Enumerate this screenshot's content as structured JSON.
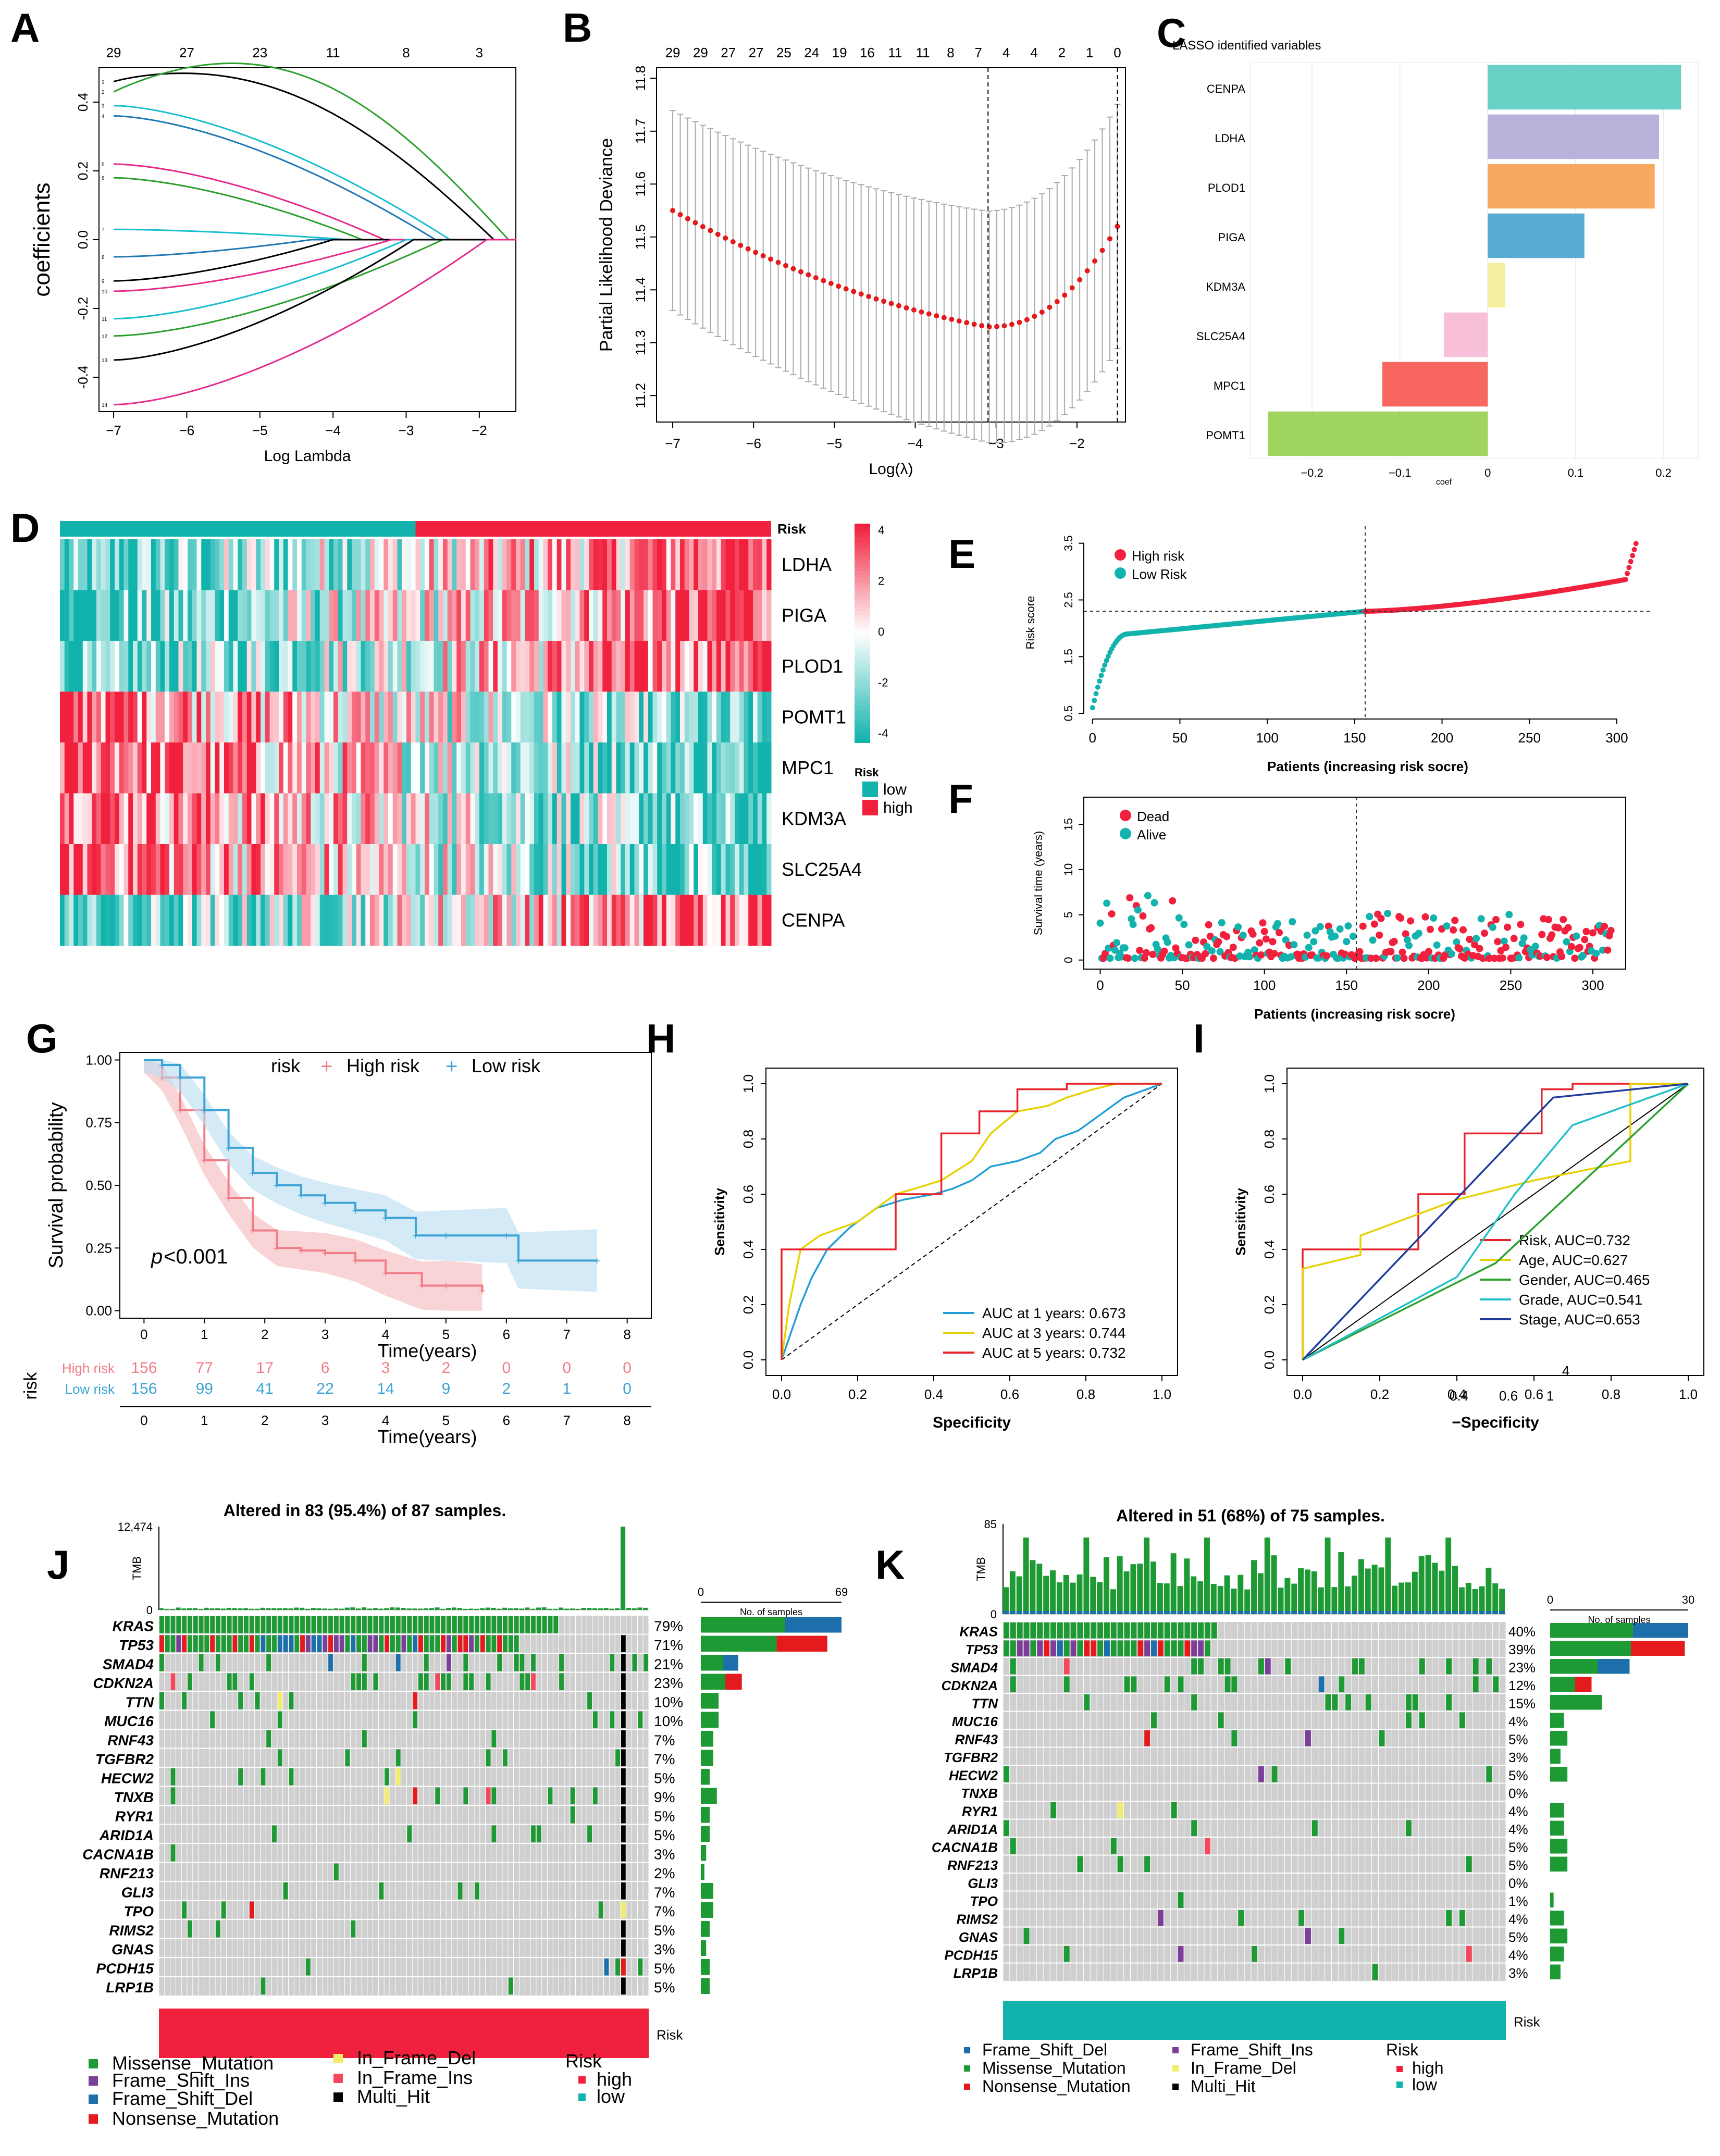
{
  "panel_letters": [
    "A",
    "B",
    "C",
    "D",
    "E",
    "F",
    "G",
    "H",
    "I",
    "J",
    "K"
  ],
  "chart_data": [
    {
      "panel": "A",
      "type": "line",
      "xlabel": "Log Lambda",
      "ylabel": "coefficients",
      "x_ticks": [
        -7,
        -6,
        -5,
        -4,
        -3,
        -2
      ],
      "y_ticks": [
        -0.4,
        -0.2,
        0.0,
        0.2,
        0.4
      ],
      "top_ticks": [
        "29",
        "27",
        "23",
        "11",
        "8",
        "3"
      ],
      "top_tick_x": [
        -7,
        -6,
        -5,
        -4,
        -3,
        -2
      ],
      "xlim": [
        -7.2,
        -1.5
      ],
      "ylim": [
        -0.5,
        0.5
      ],
      "series": [
        {
          "color": "#000000",
          "start": 0.46,
          "zero_at": -1.8,
          "bump": 0.1
        },
        {
          "color": "#2ca02c",
          "start": 0.43,
          "zero_at": -1.6,
          "bump": 0.18
        },
        {
          "color": "#17becf",
          "start": 0.39,
          "zero_at": -2.4,
          "bump": 0.0
        },
        {
          "color": "#1f77b4",
          "start": 0.36,
          "zero_at": -2.6,
          "bump": 0.0
        },
        {
          "color": "#e7298a",
          "start": 0.22,
          "zero_at": -3.3,
          "bump": 0.0
        },
        {
          "color": "#2ca02c",
          "start": 0.18,
          "zero_at": -3.6,
          "bump": 0.0
        },
        {
          "color": "#17becf",
          "start": 0.03,
          "zero_at": -3.8,
          "bump": 0.0
        },
        {
          "color": "#1f77b4",
          "start": -0.05,
          "zero_at": -4.3,
          "bump": 0.0
        },
        {
          "color": "#000000",
          "start": -0.12,
          "zero_at": -4.0,
          "bump": 0.0
        },
        {
          "color": "#e7298a",
          "start": -0.15,
          "zero_at": -3.2,
          "bump": 0.0
        },
        {
          "color": "#17becf",
          "start": -0.23,
          "zero_at": -3.0,
          "bump": 0.0
        },
        {
          "color": "#2ca02c",
          "start": -0.28,
          "zero_at": -2.5,
          "bump": 0.0
        },
        {
          "color": "#000000",
          "start": -0.35,
          "zero_at": -2.9,
          "bump": 0.0
        },
        {
          "color": "#e7298a",
          "start": -0.48,
          "zero_at": -1.9,
          "bump": 0.0
        }
      ]
    },
    {
      "panel": "B",
      "type": "scatter",
      "xlabel": "Log(λ)",
      "ylabel": "Partial Likelihood Deviance",
      "x_ticks": [
        -7,
        -6,
        -5,
        -4,
        -3,
        -2
      ],
      "y_ticks": [
        11.2,
        11.3,
        11.4,
        11.5,
        11.6,
        11.7,
        11.8
      ],
      "top_ticks": [
        "29",
        "29",
        "27",
        "27",
        "25",
        "24",
        "19",
        "16",
        "11",
        "11",
        "8",
        "7",
        "4",
        "4",
        "2",
        "1",
        "0"
      ],
      "xlim": [
        -7.2,
        -1.4
      ],
      "ylim": [
        11.15,
        11.82
      ],
      "vlines": [
        -3.1,
        -1.5
      ],
      "curve": {
        "x0": -7.0,
        "x1": -1.5,
        "ymin": 11.33,
        "xmin": -3.1,
        "y_left": 11.55,
        "y_right": 11.52,
        "err": 0.21
      }
    },
    {
      "panel": "C",
      "type": "bar",
      "title": "LASSO identified variables",
      "xlabel": "coef",
      "categories": [
        "CENPA",
        "LDHA",
        "PLOD1",
        "PIGA",
        "KDM3A",
        "SLC25A4",
        "MPC1",
        "POMT1"
      ],
      "values": [
        0.22,
        0.195,
        0.19,
        0.11,
        0.02,
        -0.05,
        -0.12,
        -0.25
      ],
      "colors": [
        "#6ad1c6",
        "#b9b3dc",
        "#f9a95f",
        "#5aabd4",
        "#f5f0a0",
        "#f8bfd8",
        "#f7675f",
        "#9fd45f"
      ],
      "x_ticks": [
        -0.2,
        -0.1,
        0.0,
        0.1,
        0.2
      ],
      "xlim": [
        -0.27,
        0.24
      ]
    },
    {
      "panel": "D",
      "type": "heatmap",
      "rows": [
        "LDHA",
        "PIGA",
        "PLOD1",
        "POMT1",
        "MPC1",
        "KDM3A",
        "SLC25A4",
        "CENPA"
      ],
      "risk_label": "Risk",
      "scale_ticks": [
        "4",
        "2",
        "0",
        "-2",
        "-4"
      ],
      "legend_title": "Risk",
      "legend_items": [
        "low",
        "high"
      ],
      "low_color": "#13b3ad",
      "high_color": "#f1203c",
      "n_samples": 312,
      "n_low": 156
    },
    {
      "panel": "E",
      "type": "scatter",
      "xlabel": "Patients (increasing risk socre)",
      "ylabel": "Risk score",
      "x_ticks": [
        0,
        50,
        100,
        150,
        200,
        250,
        300
      ],
      "y_ticks": [
        0.5,
        1.5,
        2.5,
        3.5
      ],
      "xlim": [
        -5,
        320
      ],
      "ylim": [
        0.4,
        3.8
      ],
      "legend": [
        "High risk",
        "Low Risk"
      ],
      "cutoff_x": 156,
      "cutoff_y": 2.3,
      "n": 312
    },
    {
      "panel": "F",
      "type": "scatter",
      "xlabel": "Patients (increasing risk socre)",
      "ylabel": "Survival time (years)",
      "x_ticks": [
        0,
        50,
        100,
        150,
        200,
        250,
        300
      ],
      "y_ticks": [
        0,
        5,
        10,
        15
      ],
      "xlim": [
        -10,
        320
      ],
      "ylim": [
        -1,
        18
      ],
      "legend": [
        "Dead",
        "Alive"
      ],
      "cutoff_x": 156,
      "n": 312
    },
    {
      "panel": "G",
      "type": "line",
      "xlabel": "Time(years)",
      "ylabel": "Survival probability",
      "legend_title": "risk",
      "legend": [
        "High risk",
        "Low risk"
      ],
      "pvalue": "<0.001",
      "pvalue_italic": "p",
      "x_ticks": [
        0,
        1,
        2,
        3,
        4,
        5,
        6,
        7,
        8
      ],
      "y_ticks": [
        "0.00",
        "0.25",
        "0.50",
        "0.75",
        "1.00"
      ],
      "xlim": [
        -0.4,
        8.4
      ],
      "ylim": [
        -0.03,
        1.03
      ],
      "series": [
        {
          "name": "High risk",
          "color": "#f07c86",
          "ci": "#f5b7bd",
          "x": [
            0,
            0.3,
            0.6,
            1,
            1.4,
            1.8,
            2.2,
            2.6,
            3,
            3.5,
            4,
            4.6,
            5,
            5.6
          ],
          "y": [
            1,
            0.93,
            0.8,
            0.6,
            0.45,
            0.32,
            0.25,
            0.24,
            0.23,
            0.2,
            0.15,
            0.1,
            0.1,
            0.08
          ]
        },
        {
          "name": "Low risk",
          "color": "#3ca3d6",
          "ci": "#b9dcf1",
          "x": [
            0,
            0.3,
            0.6,
            1,
            1.4,
            1.8,
            2.2,
            2.6,
            3,
            3.5,
            4,
            4.5,
            5,
            6,
            6.2,
            7.5
          ],
          "y": [
            1,
            0.98,
            0.93,
            0.8,
            0.65,
            0.55,
            0.5,
            0.46,
            0.43,
            0.4,
            0.37,
            0.3,
            0.3,
            0.3,
            0.2,
            0.2
          ]
        }
      ],
      "risk_table": {
        "title": "risk",
        "rows": [
          {
            "label": "High risk",
            "values": [
              "156",
              "77",
              "17",
              "6",
              "3",
              "2",
              "0",
              "0",
              "0"
            ]
          },
          {
            "label": "Low risk",
            "values": [
              "156",
              "99",
              "41",
              "22",
              "14",
              "9",
              "2",
              "1",
              "0"
            ]
          }
        ],
        "x_ticks": [
          0,
          1,
          2,
          3,
          4,
          5,
          6,
          7,
          8
        ]
      }
    },
    {
      "panel": "H",
      "type": "line",
      "xlabel": "Specificity",
      "ylabel": "Sensitivity",
      "x_ticks": [
        "0.0",
        "0.2",
        "0.4",
        "0.6",
        "0.8",
        "1.0"
      ],
      "y_ticks": [
        "0.0",
        "0.2",
        "0.4",
        "0.6",
        "0.8",
        "1.0"
      ],
      "series": [
        {
          "name": "AUC at 1 years: 0.673",
          "color": "#1f9fd6",
          "x": [
            0,
            0.02,
            0.05,
            0.08,
            0.12,
            0.18,
            0.25,
            0.32,
            0.4,
            0.45,
            0.5,
            0.55,
            0.62,
            0.68,
            0.72,
            0.78,
            0.85,
            0.9,
            0.96,
            1
          ],
          "y": [
            0,
            0.08,
            0.2,
            0.3,
            0.4,
            0.48,
            0.55,
            0.58,
            0.6,
            0.62,
            0.65,
            0.7,
            0.72,
            0.75,
            0.8,
            0.83,
            0.9,
            0.95,
            0.98,
            1
          ]
        },
        {
          "name": "AUC at 3 years: 0.744",
          "color": "#e8d100",
          "x": [
            0,
            0.02,
            0.05,
            0.1,
            0.2,
            0.25,
            0.3,
            0.35,
            0.42,
            0.5,
            0.55,
            0.62,
            0.7,
            0.75,
            0.82,
            0.88,
            1
          ],
          "y": [
            0,
            0.2,
            0.4,
            0.45,
            0.5,
            0.55,
            0.6,
            0.62,
            0.65,
            0.72,
            0.82,
            0.9,
            0.92,
            0.95,
            0.98,
            1,
            1
          ]
        },
        {
          "name": "AUC at 5 years: 0.732",
          "color": "#e8232b",
          "x": [
            0,
            0,
            0.05,
            0.15,
            0.3,
            0.3,
            0.42,
            0.42,
            0.52,
            0.52,
            0.62,
            0.62,
            0.75,
            0.75,
            1
          ],
          "y": [
            0,
            0.4,
            0.4,
            0.4,
            0.4,
            0.6,
            0.6,
            0.82,
            0.82,
            0.9,
            0.9,
            0.98,
            0.98,
            1,
            1
          ]
        }
      ]
    },
    {
      "panel": "I",
      "type": "line",
      "xlabel": "−Specificity",
      "ylabel": "Sensitivity",
      "x_ticks": [
        "0.0",
        "0.2",
        "0.4",
        "0.6",
        "0.8",
        "1.0"
      ],
      "y_ticks": [
        "0.0",
        "0.2",
        "0.4",
        "0.6",
        "0.8",
        "1.0"
      ],
      "x_extra_ticks": [
        "0.4",
        "0.6",
        "1",
        "4"
      ],
      "series": [
        {
          "name": "Risk, AUC=0.732",
          "color": "#e8232b",
          "x": [
            0,
            0,
            0.3,
            0.3,
            0.42,
            0.42,
            0.62,
            0.62,
            0.7,
            0.7,
            1
          ],
          "y": [
            0,
            0.4,
            0.4,
            0.6,
            0.6,
            0.82,
            0.82,
            0.98,
            0.98,
            1,
            1
          ]
        },
        {
          "name": "Age, AUC=0.627",
          "color": "#e8d100",
          "x": [
            0,
            0,
            0.15,
            0.15,
            0.4,
            0.6,
            0.85,
            0.85,
            1
          ],
          "y": [
            0,
            0.33,
            0.38,
            0.45,
            0.58,
            0.65,
            0.72,
            1,
            1
          ]
        },
        {
          "name": "Gender, AUC=0.465",
          "color": "#2ca02c",
          "x": [
            0,
            0.5,
            1
          ],
          "y": [
            0,
            0.35,
            1
          ]
        },
        {
          "name": "Grade, AUC=0.541",
          "color": "#20c0c8",
          "x": [
            0,
            0.4,
            0.55,
            0.7,
            1
          ],
          "y": [
            0,
            0.3,
            0.6,
            0.85,
            1
          ]
        },
        {
          "name": "Stage, AUC=0.653",
          "color": "#1f3b9c",
          "x": [
            0,
            0.65,
            1
          ],
          "y": [
            0,
            0.95,
            1
          ]
        }
      ]
    },
    {
      "panel": "J",
      "type": "table",
      "title": "Altered in 83 (95.4%) of 87 samples.",
      "tmb_label": "TMB",
      "tmb_max": "12,474",
      "tmb_min": "0",
      "bar_axis_label": "No. of samples",
      "bar_axis_min": "0",
      "bar_axis_max": "69",
      "genes": [
        "KRAS",
        "TP53",
        "SMAD4",
        "CDKN2A",
        "TTN",
        "MUC16",
        "RNF43",
        "TGFBR2",
        "HECW2",
        "TNXB",
        "RYR1",
        "ARID1A",
        "CACNA1B",
        "RNF213",
        "GLI3",
        "TPO",
        "RIMS2",
        "GNAS",
        "PCDH15",
        "LRP1B"
      ],
      "percents": [
        "79%",
        "71%",
        "21%",
        "23%",
        "10%",
        "10%",
        "7%",
        "7%",
        "5%",
        "9%",
        "5%",
        "5%",
        "3%",
        "2%",
        "7%",
        "7%",
        "5%",
        "3%",
        "5%",
        "5%"
      ],
      "risk_label": "Risk",
      "risk_color": "#f1203c"
    },
    {
      "panel": "K",
      "type": "table",
      "title": "Altered in 51 (68%) of 75 samples.",
      "tmb_label": "TMB",
      "tmb_max": "85",
      "tmb_min": "0",
      "bar_axis_label": "No. of samples",
      "bar_axis_min": "0",
      "bar_axis_max": "30",
      "genes": [
        "KRAS",
        "TP53",
        "SMAD4",
        "CDKN2A",
        "TTN",
        "MUC16",
        "RNF43",
        "TGFBR2",
        "HECW2",
        "TNXB",
        "RYR1",
        "ARID1A",
        "CACNA1B",
        "RNF213",
        "GLI3",
        "TPO",
        "RIMS2",
        "GNAS",
        "PCDH15",
        "LRP1B"
      ],
      "percents": [
        "40%",
        "39%",
        "23%",
        "12%",
        "15%",
        "4%",
        "5%",
        "3%",
        "5%",
        "0%",
        "4%",
        "4%",
        "5%",
        "5%",
        "0%",
        "1%",
        "4%",
        "5%",
        "4%",
        "3%"
      ],
      "risk_label": "Risk",
      "risk_color": "#13b3ad"
    }
  ],
  "mutation_legend_J": {
    "items": [
      "Missense_Mutation",
      "In_Frame_Del",
      "Frame_Shift_Ins",
      "In_Frame_Ins",
      "Frame_Shift_Del",
      "Multi_Hit",
      "Nonsense_Mutation"
    ],
    "risk_title": "Risk",
    "risk_items": [
      "high",
      "low"
    ]
  },
  "mutation_legend_K": {
    "items": [
      "Frame_Shift_Del",
      "Frame_Shift_Ins",
      "Missense_Mutation",
      "In_Frame_Del",
      "Nonsense_Mutation",
      "Multi_Hit"
    ],
    "risk_title": "Risk",
    "risk_items": [
      "high",
      "low"
    ]
  },
  "colors": {
    "missense": "#1e9a35",
    "frame_shift_ins": "#7b3f99",
    "frame_shift_del": "#1d6fab",
    "nonsense": "#e41a1c",
    "in_frame_del": "#f2ee6b",
    "in_frame_ins": "#f4495d",
    "multi_hit": "#000000",
    "grid_bg": "#cfcfcf",
    "high": "#f1203c",
    "low": "#13b3ad"
  }
}
